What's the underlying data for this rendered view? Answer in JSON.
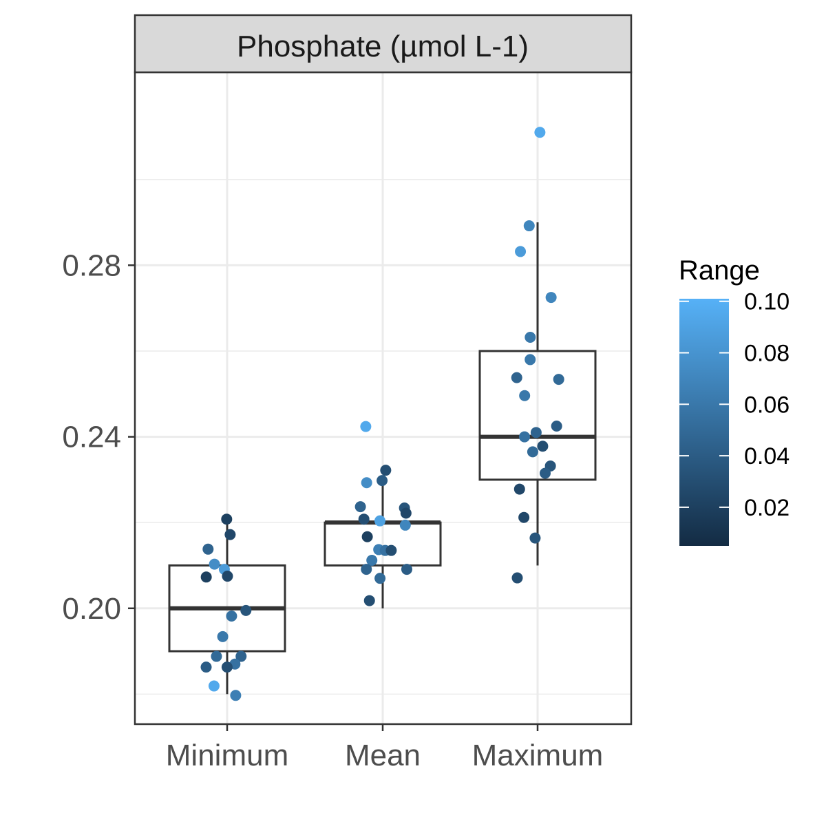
{
  "chart_data": {
    "type": "boxplot",
    "facet_title": "Phosphate (µmol L-1)",
    "categories": [
      "Minimum",
      "Mean",
      "Maximum"
    ],
    "ylim": [
      0.173,
      0.325
    ],
    "y_ticks": [
      0.2,
      0.24,
      0.28
    ],
    "y_tick_labels": [
      "0.20",
      "0.24",
      "0.28"
    ],
    "y_minor_ticks": [
      0.18,
      0.22,
      0.26,
      0.3
    ],
    "grid": true,
    "boxes": [
      {
        "category": "Minimum",
        "whisker_low": 0.18,
        "q1": 0.19,
        "median": 0.2,
        "q3": 0.21,
        "whisker_high": 0.22
      },
      {
        "category": "Mean",
        "whisker_low": 0.2,
        "q1": 0.21,
        "median": 0.22,
        "q3": 0.22,
        "whisker_high": 0.229
      },
      {
        "category": "Maximum",
        "whisker_low": 0.21,
        "q1": 0.23,
        "median": 0.24,
        "q3": 0.26,
        "whisker_high": 0.29
      }
    ],
    "points": [
      {
        "category": "Minimum",
        "y": 0.2208,
        "range": 0.02
      },
      {
        "category": "Minimum",
        "y": 0.2172,
        "range": 0.025
      },
      {
        "category": "Minimum",
        "y": 0.2138,
        "range": 0.045
      },
      {
        "category": "Minimum",
        "y": 0.2103,
        "range": 0.075
      },
      {
        "category": "Minimum",
        "y": 0.2091,
        "range": 0.085
      },
      {
        "category": "Minimum",
        "y": 0.2075,
        "range": 0.025
      },
      {
        "category": "Minimum",
        "y": 0.2073,
        "range": 0.02
      },
      {
        "category": "Minimum",
        "y": 0.1995,
        "range": 0.035
      },
      {
        "category": "Minimum",
        "y": 0.1982,
        "range": 0.055
      },
      {
        "category": "Minimum",
        "y": 0.1934,
        "range": 0.06
      },
      {
        "category": "Minimum",
        "y": 0.1888,
        "range": 0.05
      },
      {
        "category": "Minimum",
        "y": 0.1888,
        "range": 0.045
      },
      {
        "category": "Minimum",
        "y": 0.187,
        "range": 0.055
      },
      {
        "category": "Minimum",
        "y": 0.1863,
        "range": 0.04
      },
      {
        "category": "Minimum",
        "y": 0.1863,
        "range": 0.03
      },
      {
        "category": "Minimum",
        "y": 0.1819,
        "range": 0.095
      },
      {
        "category": "Minimum",
        "y": 0.1797,
        "range": 0.065
      },
      {
        "category": "Mean",
        "y": 0.2424,
        "range": 0.095
      },
      {
        "category": "Mean",
        "y": 0.2322,
        "range": 0.03
      },
      {
        "category": "Mean",
        "y": 0.2298,
        "range": 0.04
      },
      {
        "category": "Mean",
        "y": 0.2293,
        "range": 0.075
      },
      {
        "category": "Mean",
        "y": 0.2237,
        "range": 0.045
      },
      {
        "category": "Mean",
        "y": 0.2234,
        "range": 0.035
      },
      {
        "category": "Mean",
        "y": 0.2222,
        "range": 0.025
      },
      {
        "category": "Mean",
        "y": 0.2208,
        "range": 0.03
      },
      {
        "category": "Mean",
        "y": 0.2204,
        "range": 0.09
      },
      {
        "category": "Mean",
        "y": 0.2194,
        "range": 0.07
      },
      {
        "category": "Mean",
        "y": 0.2167,
        "range": 0.02
      },
      {
        "category": "Mean",
        "y": 0.2137,
        "range": 0.065
      },
      {
        "category": "Mean",
        "y": 0.2135,
        "range": 0.055
      },
      {
        "category": "Mean",
        "y": 0.2135,
        "range": 0.03
      },
      {
        "category": "Mean",
        "y": 0.2112,
        "range": 0.06
      },
      {
        "category": "Mean",
        "y": 0.2091,
        "range": 0.045
      },
      {
        "category": "Mean",
        "y": 0.2091,
        "range": 0.04
      },
      {
        "category": "Mean",
        "y": 0.207,
        "range": 0.05
      },
      {
        "category": "Mean",
        "y": 0.2018,
        "range": 0.03
      },
      {
        "category": "Maximum",
        "y": 0.311,
        "range": 0.095
      },
      {
        "category": "Maximum",
        "y": 0.2892,
        "range": 0.07
      },
      {
        "category": "Maximum",
        "y": 0.2832,
        "range": 0.085
      },
      {
        "category": "Maximum",
        "y": 0.2725,
        "range": 0.07
      },
      {
        "category": "Maximum",
        "y": 0.2632,
        "range": 0.06
      },
      {
        "category": "Maximum",
        "y": 0.258,
        "range": 0.06
      },
      {
        "category": "Maximum",
        "y": 0.2538,
        "range": 0.045
      },
      {
        "category": "Maximum",
        "y": 0.2534,
        "range": 0.05
      },
      {
        "category": "Maximum",
        "y": 0.2496,
        "range": 0.06
      },
      {
        "category": "Maximum",
        "y": 0.2425,
        "range": 0.04
      },
      {
        "category": "Maximum",
        "y": 0.241,
        "range": 0.045
      },
      {
        "category": "Maximum",
        "y": 0.24,
        "range": 0.055
      },
      {
        "category": "Maximum",
        "y": 0.2378,
        "range": 0.03
      },
      {
        "category": "Maximum",
        "y": 0.2365,
        "range": 0.05
      },
      {
        "category": "Maximum",
        "y": 0.2332,
        "range": 0.035
      },
      {
        "category": "Maximum",
        "y": 0.2315,
        "range": 0.04
      },
      {
        "category": "Maximum",
        "y": 0.2278,
        "range": 0.025
      },
      {
        "category": "Maximum",
        "y": 0.2212,
        "range": 0.025
      },
      {
        "category": "Maximum",
        "y": 0.2164,
        "range": 0.035
      },
      {
        "category": "Maximum",
        "y": 0.2071,
        "range": 0.03
      }
    ],
    "legend": {
      "title": "Range",
      "placement": "right",
      "min": 0.005,
      "max": 0.101,
      "ticks": [
        0.02,
        0.04,
        0.06,
        0.08,
        0.1
      ],
      "tick_labels": [
        "0.02",
        "0.04",
        "0.06",
        "0.08",
        "0.10"
      ],
      "color_low": "#132B43",
      "color_high": "#56B1F7"
    },
    "colors": {
      "box_stroke": "#333333",
      "strip_fill": "#d9d9d9",
      "panel_border": "#333333",
      "grid": "#ebebeb",
      "axis_text": "#4d4d4d"
    }
  }
}
